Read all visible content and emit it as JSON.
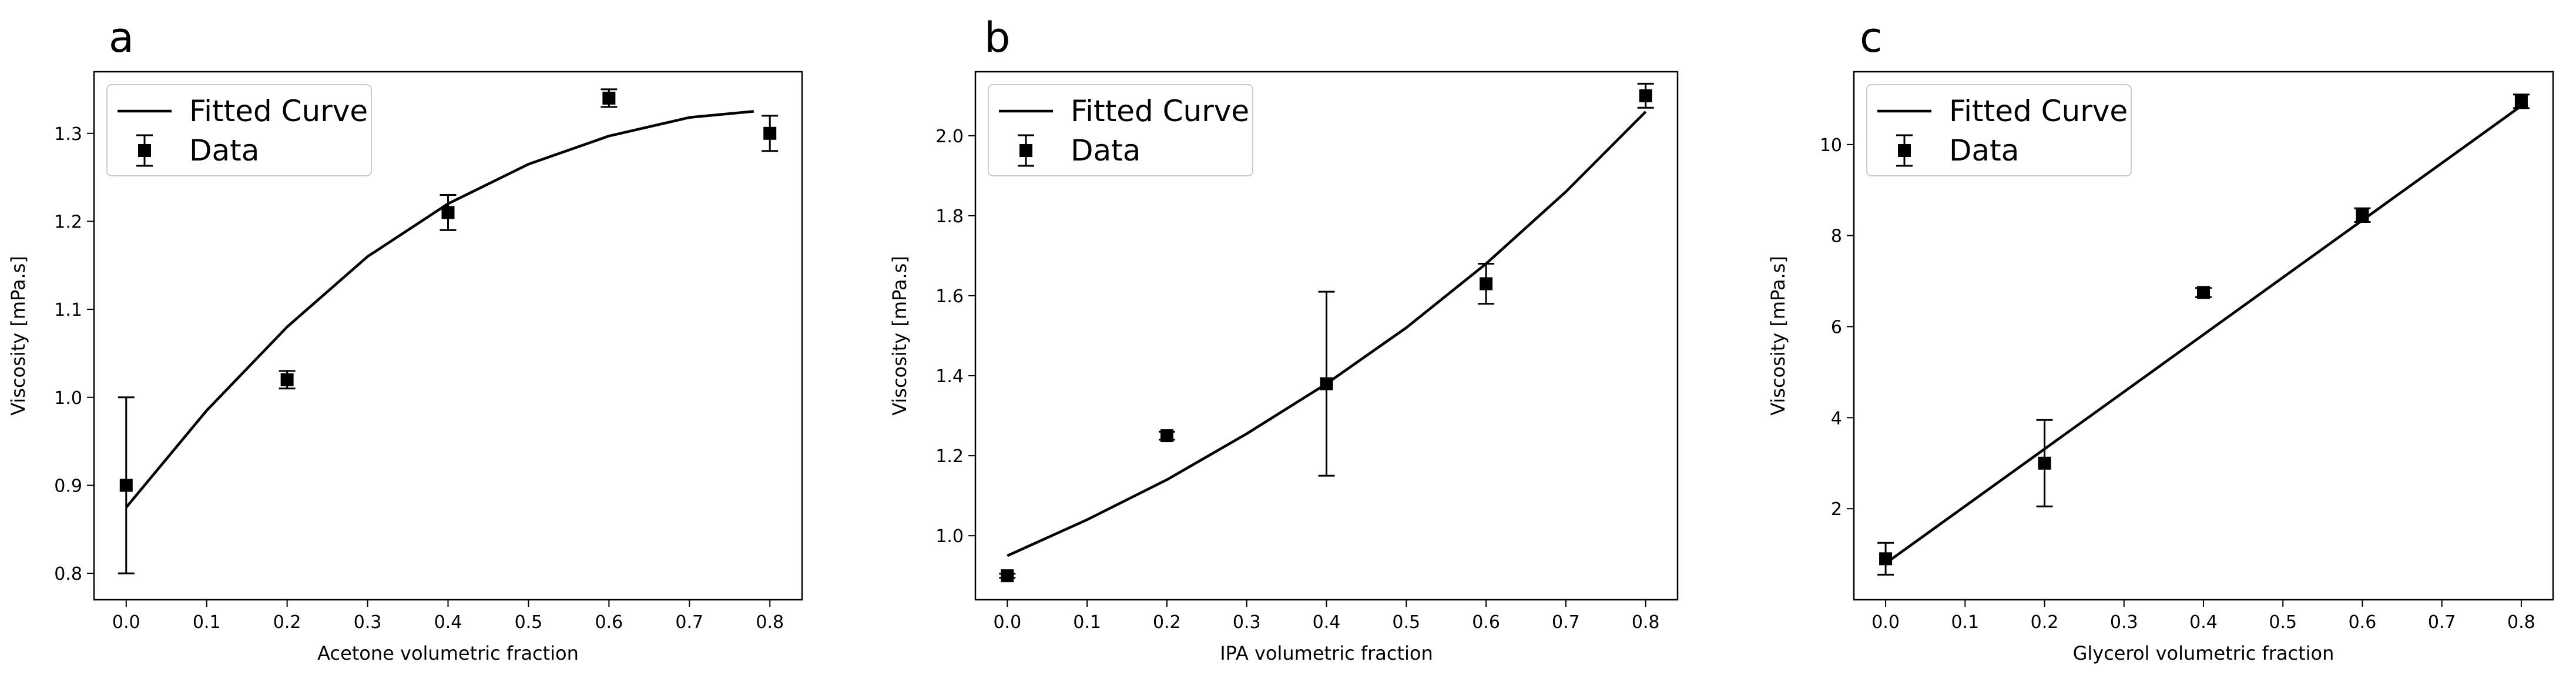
{
  "figure": {
    "legend": {
      "curve_label": "Fitted Curve",
      "data_label": "Data"
    }
  },
  "chart_data": [
    {
      "type": "scatter",
      "panel_label": "a",
      "xlabel": "Acetone volumetric fraction",
      "ylabel": "Viscosity [mPa.s]",
      "xlim": [
        -0.04,
        0.84
      ],
      "ylim": [
        0.77,
        1.37
      ],
      "xticks": [
        0.0,
        0.1,
        0.2,
        0.3,
        0.4,
        0.5,
        0.6,
        0.7,
        0.8
      ],
      "xtick_labels": [
        "0.0",
        "0.1",
        "0.2",
        "0.3",
        "0.4",
        "0.5",
        "0.6",
        "0.7",
        "0.8"
      ],
      "yticks": [
        0.8,
        0.9,
        1.0,
        1.1,
        1.2,
        1.3
      ],
      "ytick_labels": [
        "0.8",
        "0.9",
        "1.0",
        "1.1",
        "1.2",
        "1.3"
      ],
      "legend_position": "top-left",
      "series": [
        {
          "name": "Data",
          "kind": "errorbar",
          "x": [
            0.0,
            0.2,
            0.4,
            0.6,
            0.8
          ],
          "y": [
            0.9,
            1.02,
            1.21,
            1.34,
            1.3
          ],
          "yerr": [
            0.1,
            0.01,
            0.02,
            0.01,
            0.02
          ]
        },
        {
          "name": "Fitted Curve",
          "kind": "line",
          "x": [
            0.0,
            0.1,
            0.2,
            0.3,
            0.4,
            0.5,
            0.6,
            0.7,
            0.78
          ],
          "y": [
            0.875,
            0.985,
            1.08,
            1.16,
            1.22,
            1.265,
            1.297,
            1.318,
            1.325
          ]
        }
      ]
    },
    {
      "type": "scatter",
      "panel_label": "b",
      "xlabel": "IPA volumetric fraction",
      "ylabel": "Viscosity [mPa.s]",
      "xlim": [
        -0.04,
        0.84
      ],
      "ylim": [
        0.84,
        2.16
      ],
      "xticks": [
        0.0,
        0.1,
        0.2,
        0.3,
        0.4,
        0.5,
        0.6,
        0.7,
        0.8
      ],
      "xtick_labels": [
        "0.0",
        "0.1",
        "0.2",
        "0.3",
        "0.4",
        "0.5",
        "0.6",
        "0.7",
        "0.8"
      ],
      "yticks": [
        1.0,
        1.2,
        1.4,
        1.6,
        1.8,
        2.0
      ],
      "ytick_labels": [
        "1.0",
        "1.2",
        "1.4",
        "1.6",
        "1.8",
        "2.0"
      ],
      "legend_position": "top-left",
      "series": [
        {
          "name": "Data",
          "kind": "errorbar",
          "x": [
            0.0,
            0.2,
            0.4,
            0.6,
            0.8
          ],
          "y": [
            0.9,
            1.25,
            1.38,
            1.63,
            2.1
          ],
          "yerr": [
            0.005,
            0.01,
            0.23,
            0.05,
            0.03
          ]
        },
        {
          "name": "Fitted Curve",
          "kind": "line",
          "x": [
            0.0,
            0.1,
            0.2,
            0.3,
            0.4,
            0.5,
            0.6,
            0.7,
            0.8
          ],
          "y": [
            0.95,
            1.04,
            1.14,
            1.255,
            1.38,
            1.52,
            1.68,
            1.86,
            2.06
          ]
        }
      ]
    },
    {
      "type": "scatter",
      "panel_label": "c",
      "xlabel": "Glycerol volumetric fraction",
      "ylabel": "Viscosity [mPa.s]",
      "xlim": [
        -0.04,
        0.84
      ],
      "ylim": [
        0.0,
        11.6
      ],
      "xticks": [
        0.0,
        0.1,
        0.2,
        0.3,
        0.4,
        0.5,
        0.6,
        0.7,
        0.8
      ],
      "xtick_labels": [
        "0.0",
        "0.1",
        "0.2",
        "0.3",
        "0.4",
        "0.5",
        "0.6",
        "0.7",
        "0.8"
      ],
      "yticks": [
        2,
        4,
        6,
        8,
        10
      ],
      "ytick_labels": [
        "2",
        "4",
        "6",
        "8",
        "10"
      ],
      "legend_position": "top-left",
      "series": [
        {
          "name": "Data",
          "kind": "errorbar",
          "x": [
            0.0,
            0.2,
            0.4,
            0.6,
            0.8
          ],
          "y": [
            0.9,
            3.0,
            6.75,
            8.45,
            10.95
          ],
          "yerr": [
            0.35,
            0.95,
            0.1,
            0.15,
            0.15
          ]
        },
        {
          "name": "Fitted Curve",
          "kind": "line",
          "x": [
            0.0,
            0.8
          ],
          "y": [
            0.8,
            10.85
          ]
        }
      ]
    }
  ]
}
